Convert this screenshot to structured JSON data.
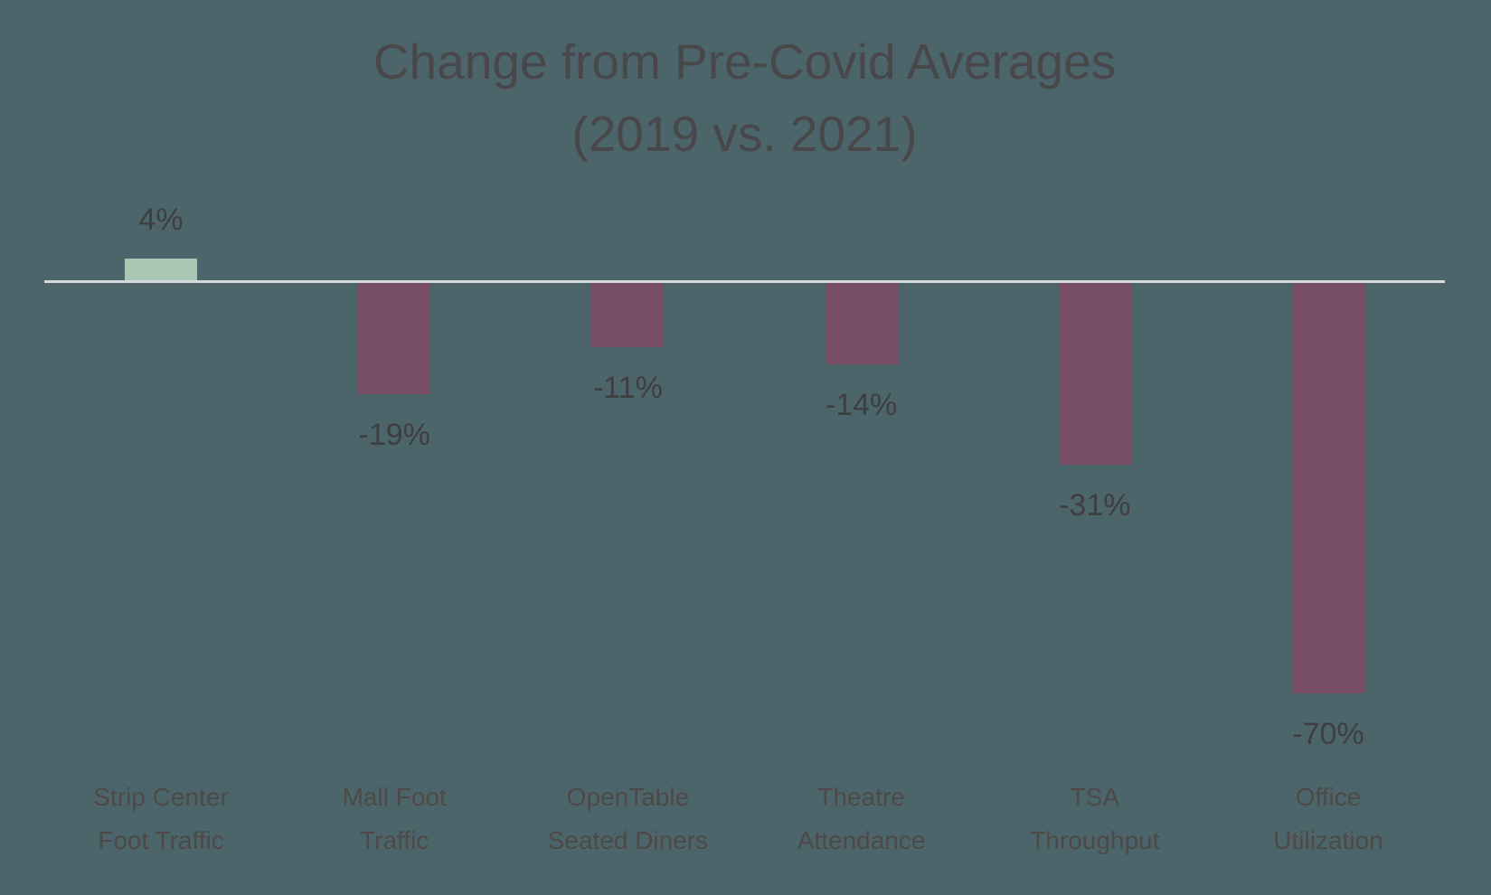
{
  "chart_data": {
    "type": "bar",
    "title": "Change from Pre-Covid Averages (2019 vs. 2021)",
    "title_lines": [
      "Change from Pre-Covid Averages",
      "(2019 vs. 2021)"
    ],
    "categories": [
      "Strip Center Foot Traffic",
      "Mall Foot Traffic",
      "OpenTable Seated Diners",
      "Theatre Attendance",
      "TSA Throughput",
      "Office Utilization"
    ],
    "category_lines": [
      [
        "Strip Center",
        "Foot Traffic"
      ],
      [
        "Mall Foot",
        "Traffic"
      ],
      [
        "OpenTable",
        "Seated Diners"
      ],
      [
        "Theatre",
        "Attendance"
      ],
      [
        "TSA",
        "Throughput"
      ],
      [
        "Office",
        "Utilization"
      ]
    ],
    "values": [
      4,
      -19,
      -11,
      -14,
      -31,
      -70
    ],
    "data_labels": [
      "4%",
      "-19%",
      "-11%",
      "-14%",
      "-31%",
      "-70%"
    ],
    "unit": "%",
    "xlabel": "",
    "ylabel": "",
    "ylim": [
      -75,
      10
    ],
    "grid": false,
    "legend": false,
    "axis": {
      "baseline_value": 0,
      "tick_labels_hidden": true
    },
    "colors": {
      "background": "#4c656b",
      "positive_bar": "#a8c8b4",
      "negative_bar": "#784d66",
      "axis_line": "#d7dadb",
      "title_text": "#48474a",
      "data_label_text": "#3e3e41",
      "category_label_text": "#4e4947"
    }
  }
}
